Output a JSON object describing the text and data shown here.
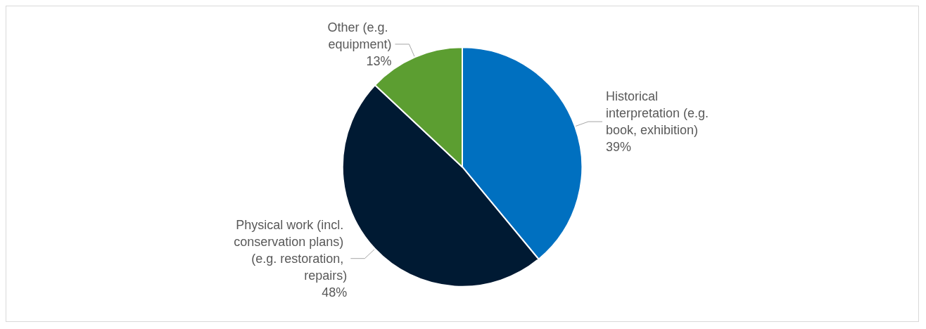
{
  "chart_data": {
    "type": "pie",
    "categories": [
      "Historical interpretation (e.g. book, exhibition)",
      "Physical work (incl. conservation plans) (e.g. restoration, repairs)",
      "Other (e.g. equipment)"
    ],
    "values": [
      39,
      48,
      13
    ],
    "colors": [
      "#0070c0",
      "#001a33",
      "#5c9e31"
    ],
    "value_labels": [
      "39%",
      "48%",
      "13%"
    ],
    "legend": false
  }
}
